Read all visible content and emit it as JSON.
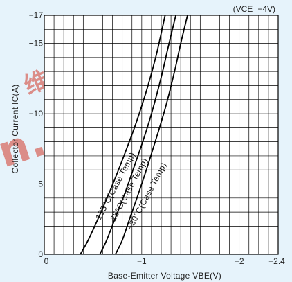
{
  "chart_data": {
    "type": "line",
    "condition": "(VCE=−4V)",
    "xlabel": "Base-Emitter Voltage VBE(V)",
    "ylabel": "Collector Current IC(A)",
    "xlim": [
      0,
      -2.4
    ],
    "ylim": [
      0,
      -17
    ],
    "x_ticks": [
      {
        "value": 0,
        "label": "0"
      },
      {
        "value": -1,
        "label": "−1"
      },
      {
        "value": -2,
        "label": "−2"
      },
      {
        "value": -2.4,
        "label": "−2.4"
      }
    ],
    "y_ticks": [
      {
        "value": 0,
        "label": "0"
      },
      {
        "value": -5,
        "label": "−5"
      },
      {
        "value": -10,
        "label": "−10"
      },
      {
        "value": -15,
        "label": "−15"
      },
      {
        "value": -17,
        "label": "−17"
      }
    ],
    "grid": true,
    "series": [
      {
        "name": "125°C(Case Temp)",
        "x": [
          -0.37,
          -0.45,
          -0.55,
          -0.65,
          -0.75,
          -0.85,
          -0.95,
          -1.06,
          -1.15,
          -1.24
        ],
        "y": [
          0,
          -1.0,
          -2.5,
          -4.1,
          -5.8,
          -7.6,
          -9.5,
          -11.9,
          -14.2,
          -17
        ]
      },
      {
        "name": "25°C(Case Temp)",
        "x": [
          -0.57,
          -0.64,
          -0.73,
          -0.83,
          -0.92,
          -1.01,
          -1.1,
          -1.2,
          -1.27,
          -1.35
        ],
        "y": [
          0,
          -1.0,
          -2.6,
          -4.4,
          -6.2,
          -8.0,
          -10.0,
          -12.6,
          -14.7,
          -17
        ]
      },
      {
        "name": "−30°C(Case Temp)",
        "x": [
          -0.73,
          -0.8,
          -0.88,
          -0.98,
          -1.07,
          -1.16,
          -1.25,
          -1.34,
          -1.4,
          -1.47
        ],
        "y": [
          0,
          -1.0,
          -2.6,
          -4.6,
          -6.5,
          -8.5,
          -10.6,
          -13.1,
          -15.0,
          -17
        ]
      }
    ]
  },
  "watermark": {
    "cjk_text": "维库",
    "latin_text": "n.cn",
    "color": "#d33a2c"
  }
}
